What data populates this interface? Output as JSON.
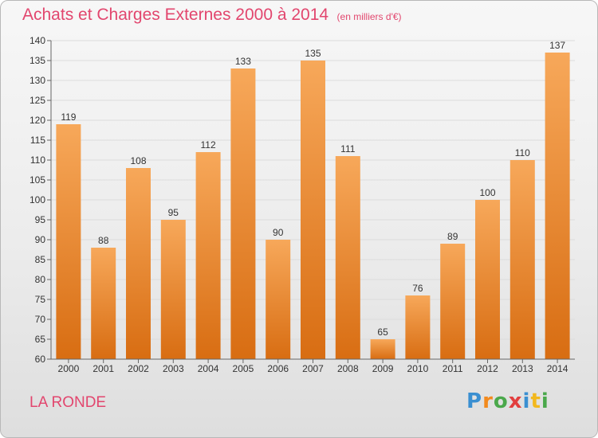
{
  "title": "Achats et Charges Externes 2000 à 2014",
  "unit_label": "(en milliers d'€)",
  "commune": "LA RONDE",
  "logo": {
    "text": "Proxiti",
    "letters": [
      {
        "char": "P",
        "color": "#3a8fd1"
      },
      {
        "char": "r",
        "color": "#f28a1e"
      },
      {
        "char": "o",
        "color": "#4aa84b"
      },
      {
        "char": "x",
        "color": "#e23f3f"
      },
      {
        "char": "i",
        "color": "#3a8fd1"
      },
      {
        "char": "t",
        "color": "#f2b81e"
      },
      {
        "char": "i",
        "color": "#4aa84b"
      }
    ]
  },
  "colors": {
    "accent": "#e2466e",
    "bar_light": "#f7a85a",
    "bar_dark": "#d86d12",
    "axis": "#666666",
    "grid": "#dcdcdc"
  },
  "chart_data": {
    "type": "bar",
    "title": "Achats et Charges Externes 2000 à 2014",
    "subtitle": "(en milliers d'€)",
    "xlabel": "",
    "ylabel": "",
    "categories": [
      "2000",
      "2001",
      "2002",
      "2003",
      "2004",
      "2005",
      "2006",
      "2007",
      "2008",
      "2009",
      "2010",
      "2011",
      "2012",
      "2013",
      "2014"
    ],
    "values": [
      119,
      88,
      108,
      95,
      112,
      133,
      90,
      135,
      111,
      65,
      76,
      89,
      100,
      110,
      137
    ],
    "ylim": [
      60,
      140
    ],
    "yticks": [
      60,
      65,
      70,
      75,
      80,
      85,
      90,
      95,
      100,
      105,
      110,
      115,
      120,
      125,
      130,
      135,
      140
    ],
    "grid": true,
    "legend": "none"
  }
}
